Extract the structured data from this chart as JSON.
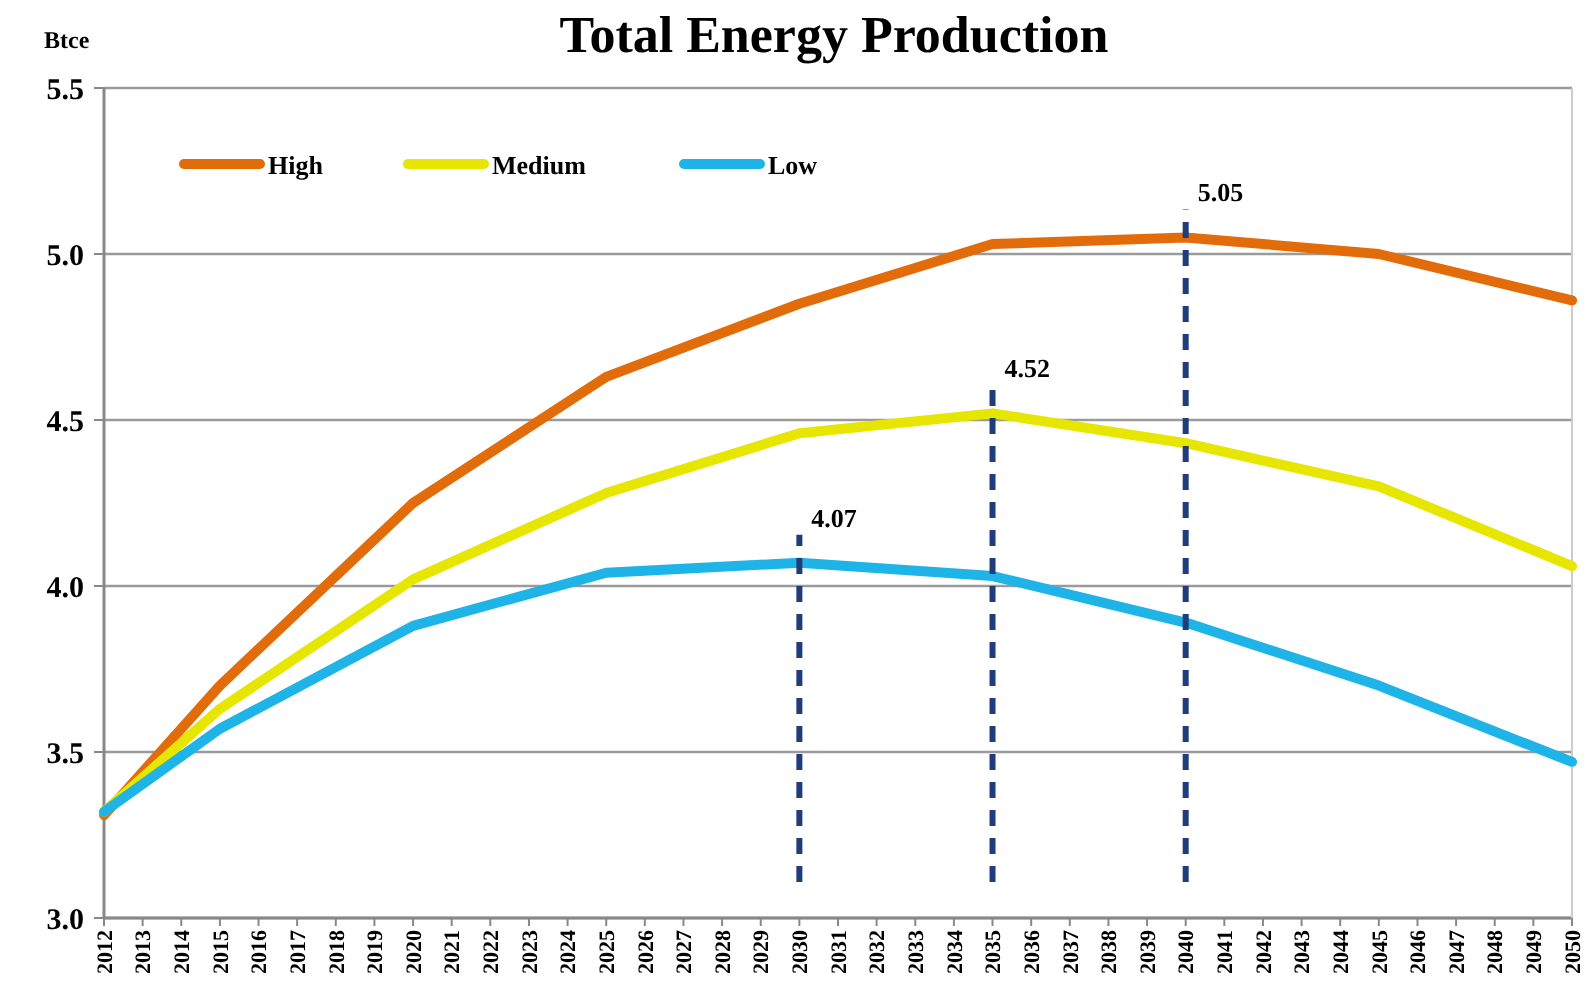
{
  "chart_data": {
    "type": "line",
    "title": "Total Energy Production",
    "ylabel": "Btce",
    "x": [
      2012,
      2015,
      2020,
      2025,
      2030,
      2035,
      2040,
      2045,
      2050
    ],
    "xlim": [
      2012,
      2050
    ],
    "xticks": [
      2012,
      2013,
      2014,
      2015,
      2016,
      2017,
      2018,
      2019,
      2020,
      2021,
      2022,
      2023,
      2024,
      2025,
      2026,
      2027,
      2028,
      2029,
      2030,
      2031,
      2032,
      2033,
      2034,
      2035,
      2036,
      2037,
      2038,
      2039,
      2040,
      2041,
      2042,
      2043,
      2044,
      2045,
      2046,
      2047,
      2048,
      2049,
      2050
    ],
    "ylim": [
      3.0,
      5.5
    ],
    "yticks": [
      {
        "value": 3.0,
        "label": "3.0"
      },
      {
        "value": 3.5,
        "label": "3.5"
      },
      {
        "value": 4.0,
        "label": "4.0"
      },
      {
        "value": 4.5,
        "label": "4.5"
      },
      {
        "value": 5.0,
        "label": "5.0"
      },
      {
        "value": 5.5,
        "label": "5.5"
      }
    ],
    "series": [
      {
        "name": "High",
        "color": "#e36c0a",
        "values": [
          3.31,
          3.7,
          4.25,
          4.63,
          4.85,
          5.03,
          5.05,
          5.0,
          4.86
        ]
      },
      {
        "name": "Medium",
        "color": "#e6e600",
        "values": [
          3.32,
          3.63,
          4.02,
          4.28,
          4.46,
          4.52,
          4.43,
          4.3,
          4.06
        ]
      },
      {
        "name": "Low",
        "color": "#1fb4e8",
        "values": [
          3.32,
          3.57,
          3.88,
          4.04,
          4.07,
          4.03,
          3.89,
          3.7,
          3.47
        ]
      }
    ],
    "ref_lines": [
      {
        "axis": "x",
        "value": 2030,
        "color": "#1f3d7a",
        "line_style": "dashed"
      },
      {
        "axis": "x",
        "value": 2035,
        "color": "#1f3d7a",
        "line_style": "dashed"
      },
      {
        "axis": "x",
        "value": 2040,
        "color": "#1f3d7a",
        "line_style": "dashed"
      }
    ],
    "annotations": [
      {
        "text": "4.07",
        "x": 2030,
        "y": 4.07
      },
      {
        "text": "4.52",
        "x": 2035,
        "y": 4.52
      },
      {
        "text": "5.05",
        "x": 2040,
        "y": 5.05
      }
    ],
    "grid": "y",
    "legend": "top left",
    "marker": "none",
    "line_style": "solid"
  }
}
